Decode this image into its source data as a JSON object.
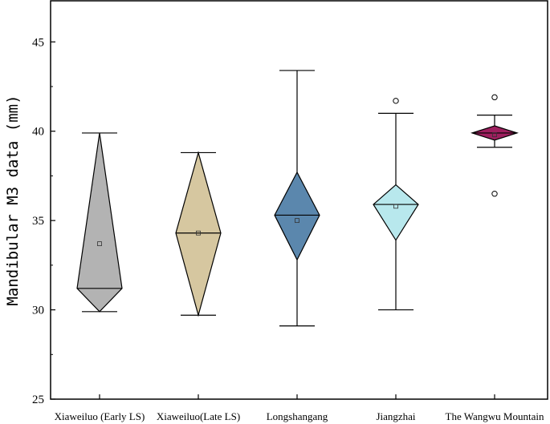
{
  "chart_data": {
    "type": "box",
    "title": "",
    "xlabel": "",
    "ylabel": "Mandibular M3 data (mm)",
    "ylim": [
      25,
      47.3
    ],
    "yticks": [
      25,
      30,
      35,
      40,
      45
    ],
    "grid": false,
    "categories": [
      "Xiaweiluo (Early LS)",
      "Xiaweiluo(Late LS)",
      "Longshangang",
      "Jiangzhai",
      "The Wangwu Mountain"
    ],
    "colors": [
      "#b3b3b3",
      "#d6c7a0",
      "#5b87ad",
      "#b8e8ed",
      "#9e1f5e"
    ],
    "boxes": [
      {
        "whisker_low": 29.9,
        "box_low": 29.9,
        "median": 31.2,
        "box_high": 39.9,
        "whisker_high": 39.9,
        "mean": 33.7,
        "outliers": []
      },
      {
        "whisker_low": 29.7,
        "box_low": 29.7,
        "median": 34.3,
        "box_high": 38.8,
        "whisker_high": 38.8,
        "mean": 34.3,
        "outliers": []
      },
      {
        "whisker_low": 29.1,
        "box_low": 32.8,
        "median": 35.3,
        "box_high": 37.7,
        "whisker_high": 43.4,
        "mean": 35.0,
        "outliers": []
      },
      {
        "whisker_low": 30.0,
        "box_low": 33.9,
        "median": 35.9,
        "box_high": 37.0,
        "whisker_high": 41.0,
        "mean": 35.8,
        "outliers": [
          41.7
        ]
      },
      {
        "whisker_low": 39.1,
        "box_low": 39.5,
        "median": 39.9,
        "box_high": 40.3,
        "whisker_high": 40.9,
        "mean": 39.8,
        "outliers": [
          41.9,
          36.5
        ]
      }
    ]
  }
}
